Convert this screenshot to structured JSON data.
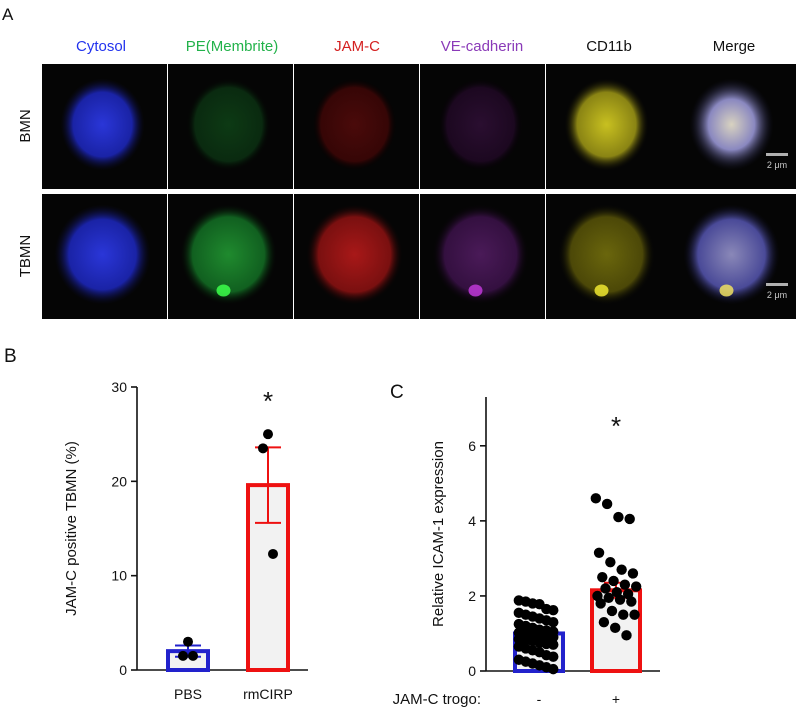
{
  "colors": {
    "cytosol": "#2233ee",
    "pe_membrite": "#22b24a",
    "jamc": "#d42020",
    "vecadherin": "#8a3ab8",
    "cd11b": "#111111",
    "merge": "#111111",
    "pbs_bar": "#2222cc",
    "rmcirp_bar": "#ee1111",
    "bar_fill": "#f2f2f2",
    "scalebar": "#b0b0b0"
  },
  "panel_a": {
    "letter": "A",
    "channels": [
      "Cytosol",
      "PE(Membrite)",
      "JAM-C",
      "VE-cadherin",
      "CD11b",
      "Merge"
    ],
    "rows": [
      "BMN",
      "TBMN"
    ],
    "scale_label": "2 μm"
  },
  "chart_data": [
    {
      "panel": "B",
      "type": "bar",
      "ylabel": "JAM-C positive TBMN (%)",
      "ylim": [
        0,
        30
      ],
      "yticks": [
        0,
        10,
        20,
        30
      ],
      "categories": [
        "PBS",
        "rmCIRP"
      ],
      "values": [
        2.0,
        19.6
      ],
      "errors": [
        0.6,
        4.0
      ],
      "points": [
        [
          3.0,
          1.5,
          1.5
        ],
        [
          25.0,
          23.5,
          12.3
        ]
      ],
      "bar_colors": [
        "#2222cc",
        "#ee1111"
      ],
      "significance": [
        {
          "category": "rmCIRP",
          "label": "*"
        }
      ]
    },
    {
      "panel": "C",
      "type": "bar",
      "ylabel": "Relative ICAM-1 expression",
      "xlabel": "JAM-C trogo:",
      "ylim": [
        0,
        7.3
      ],
      "yticks": [
        0,
        2,
        4,
        6
      ],
      "categories": [
        "-",
        "+"
      ],
      "values": [
        1.0,
        2.15
      ],
      "errors": [
        0.08,
        0.2
      ],
      "points": [
        [
          1.88,
          1.85,
          1.8,
          1.78,
          1.65,
          1.62,
          1.55,
          1.5,
          1.45,
          1.4,
          1.35,
          1.3,
          1.25,
          1.2,
          1.15,
          1.1,
          1.08,
          1.05,
          1.02,
          1.0,
          0.98,
          0.95,
          0.92,
          0.9,
          0.85,
          0.82,
          0.8,
          0.75,
          0.72,
          0.7,
          0.65,
          0.6,
          0.55,
          0.5,
          0.42,
          0.38,
          0.3,
          0.25,
          0.2,
          0.15,
          0.1,
          0.05
        ],
        [
          4.6,
          4.45,
          4.1,
          4.05,
          3.15,
          2.9,
          2.7,
          2.6,
          2.5,
          2.4,
          2.3,
          2.25,
          2.2,
          2.1,
          2.05,
          2.0,
          1.95,
          1.9,
          1.85,
          1.8,
          1.6,
          1.5,
          1.5,
          1.3,
          1.15,
          0.95
        ]
      ],
      "bar_colors": [
        "#2222cc",
        "#ee1111"
      ],
      "significance": [
        {
          "category": "+",
          "label": "*"
        }
      ]
    }
  ]
}
